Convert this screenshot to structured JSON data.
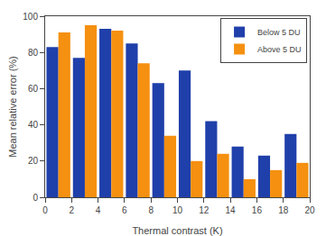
{
  "chart_data": {
    "type": "bar",
    "xlabel": "Thermal contrast (K)",
    "ylabel": "Mean relative error (%)",
    "x": [
      1,
      3,
      5,
      7,
      9,
      11,
      13,
      15,
      17,
      19
    ],
    "series": [
      {
        "name": "Below 5 DU",
        "color": "#1f3faa",
        "values": [
          83,
          77,
          93,
          85,
          63,
          70,
          42,
          28,
          23,
          35
        ]
      },
      {
        "name": "Above 5 DU",
        "color": "#f59010",
        "values": [
          91,
          95,
          92,
          74,
          34,
          20,
          24,
          10,
          15,
          19
        ]
      }
    ],
    "xlim": [
      0,
      20
    ],
    "ylim": [
      0,
      100
    ],
    "xticks": [
      0,
      2,
      4,
      6,
      8,
      10,
      12,
      14,
      16,
      18,
      20
    ],
    "yticks": [
      0,
      20,
      40,
      60,
      80,
      100
    ],
    "grid": false,
    "legend": "upper right"
  }
}
